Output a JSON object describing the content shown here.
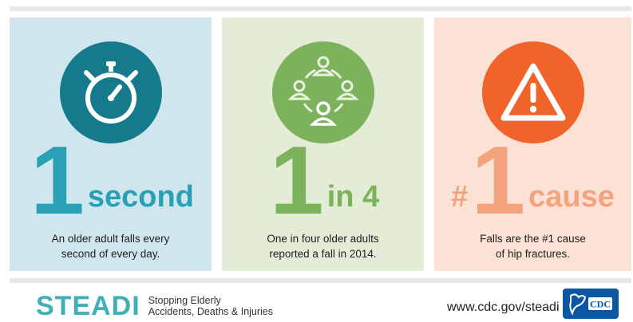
{
  "panels": [
    {
      "icon": "stopwatch-icon",
      "numeral": "1",
      "prefix": "",
      "unit": "second",
      "caption_line1": "An older adult falls every",
      "caption_line2": "second of every day.",
      "colors": {
        "circle": "#157a8c",
        "text": "#2aa0b4",
        "bg": "#cfe6ee"
      }
    },
    {
      "icon": "people-circle-icon",
      "numeral": "1",
      "prefix": "",
      "unit": "in 4",
      "caption_line1": "One in four older adults",
      "caption_line2": "reported a fall in 2014.",
      "colors": {
        "circle": "#7cb25b",
        "text": "#7cb25b",
        "bg": "#e3ecd6"
      }
    },
    {
      "icon": "warning-icon",
      "numeral": "1",
      "prefix": "#",
      "unit": "cause",
      "caption_line1": "Falls are the #1 cause",
      "caption_line2": "of hip fractures.",
      "colors": {
        "circle": "#f0642b",
        "text": "#f4a37f",
        "bg": "#fbe2d4"
      }
    }
  ],
  "footer": {
    "brand": "STEADI",
    "tagline_line1": "Stopping Elderly",
    "tagline_line2": "Accidents, Deaths & Injuries",
    "url": "www.cdc.gov/steadi",
    "badge": "CDC"
  }
}
